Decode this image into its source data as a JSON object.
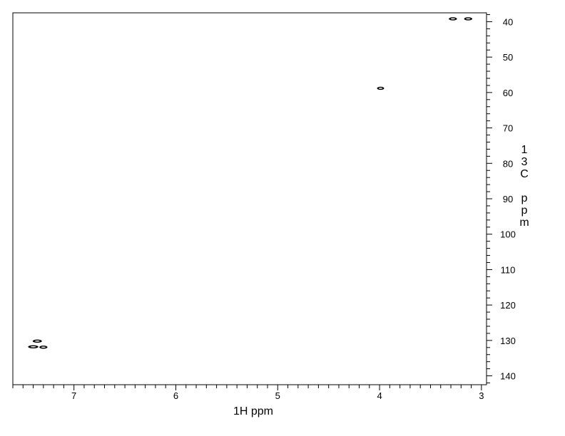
{
  "chart_data": {
    "type": "heatmap",
    "subtype": "2D NMR contour plot (HSQC)",
    "xlabel": "1H ppm",
    "ylabel_chars": [
      "1",
      "3",
      "C",
      "",
      "p",
      "p",
      "m"
    ],
    "x_axis": {
      "range": [
        7.6,
        2.95
      ],
      "reversed": true,
      "major_ticks": [
        7,
        6,
        5,
        4,
        3
      ],
      "minor_step": 0.1
    },
    "y_axis": {
      "range": [
        37.5,
        142.5
      ],
      "reversed": true,
      "position": "right",
      "major_ticks": [
        40,
        50,
        60,
        70,
        80,
        90,
        100,
        110,
        120,
        130,
        140
      ],
      "minor_step": 2
    },
    "peaks": [
      {
        "h": 7.4,
        "c": 131.8,
        "width_ppm": 0.1
      },
      {
        "h": 7.36,
        "c": 130.2,
        "width_ppm": 0.09
      },
      {
        "h": 7.3,
        "c": 131.9,
        "width_ppm": 0.08
      },
      {
        "h": 3.99,
        "c": 58.8,
        "width_ppm": 0.07
      },
      {
        "h": 3.28,
        "c": 39.2,
        "width_ppm": 0.08
      },
      {
        "h": 3.13,
        "c": 39.2,
        "width_ppm": 0.08
      }
    ],
    "grid": false,
    "colors": {
      "axis": "#000000",
      "contour": "#000000",
      "background": "#ffffff"
    }
  }
}
